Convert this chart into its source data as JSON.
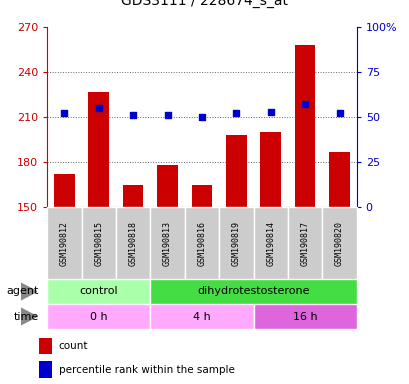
{
  "title": "GDS3111 / 228674_s_at",
  "samples": [
    "GSM190812",
    "GSM190815",
    "GSM190818",
    "GSM190813",
    "GSM190816",
    "GSM190819",
    "GSM190814",
    "GSM190817",
    "GSM190820"
  ],
  "counts": [
    172,
    227,
    165,
    178,
    165,
    198,
    200,
    258,
    187
  ],
  "percentiles": [
    52,
    55,
    51,
    51,
    50,
    52,
    53,
    57,
    52
  ],
  "ylim_left": [
    150,
    270
  ],
  "ylim_right": [
    0,
    100
  ],
  "yticks_left": [
    150,
    180,
    210,
    240,
    270
  ],
  "yticks_right": [
    0,
    25,
    50,
    75,
    100
  ],
  "ytick_labels_right": [
    "0",
    "25",
    "50",
    "75",
    "100%"
  ],
  "bar_color": "#cc0000",
  "dot_color": "#0000cc",
  "bar_width": 0.6,
  "agent_groups": [
    {
      "label": "control",
      "start": 0,
      "end": 3,
      "color": "#aaffaa"
    },
    {
      "label": "dihydrotestosterone",
      "start": 3,
      "end": 9,
      "color": "#44dd44"
    }
  ],
  "time_colors": [
    "#ffaaff",
    "#ffaaff",
    "#dd66dd"
  ],
  "time_groups": [
    {
      "label": "0 h",
      "start": 0,
      "end": 3
    },
    {
      "label": "4 h",
      "start": 3,
      "end": 6
    },
    {
      "label": "16 h",
      "start": 6,
      "end": 9
    }
  ],
  "grid_color": "#666666",
  "bg_color": "#ffffff",
  "title_fontsize": 10,
  "tick_fontsize": 8,
  "label_fontsize": 8,
  "sample_fontsize": 6
}
